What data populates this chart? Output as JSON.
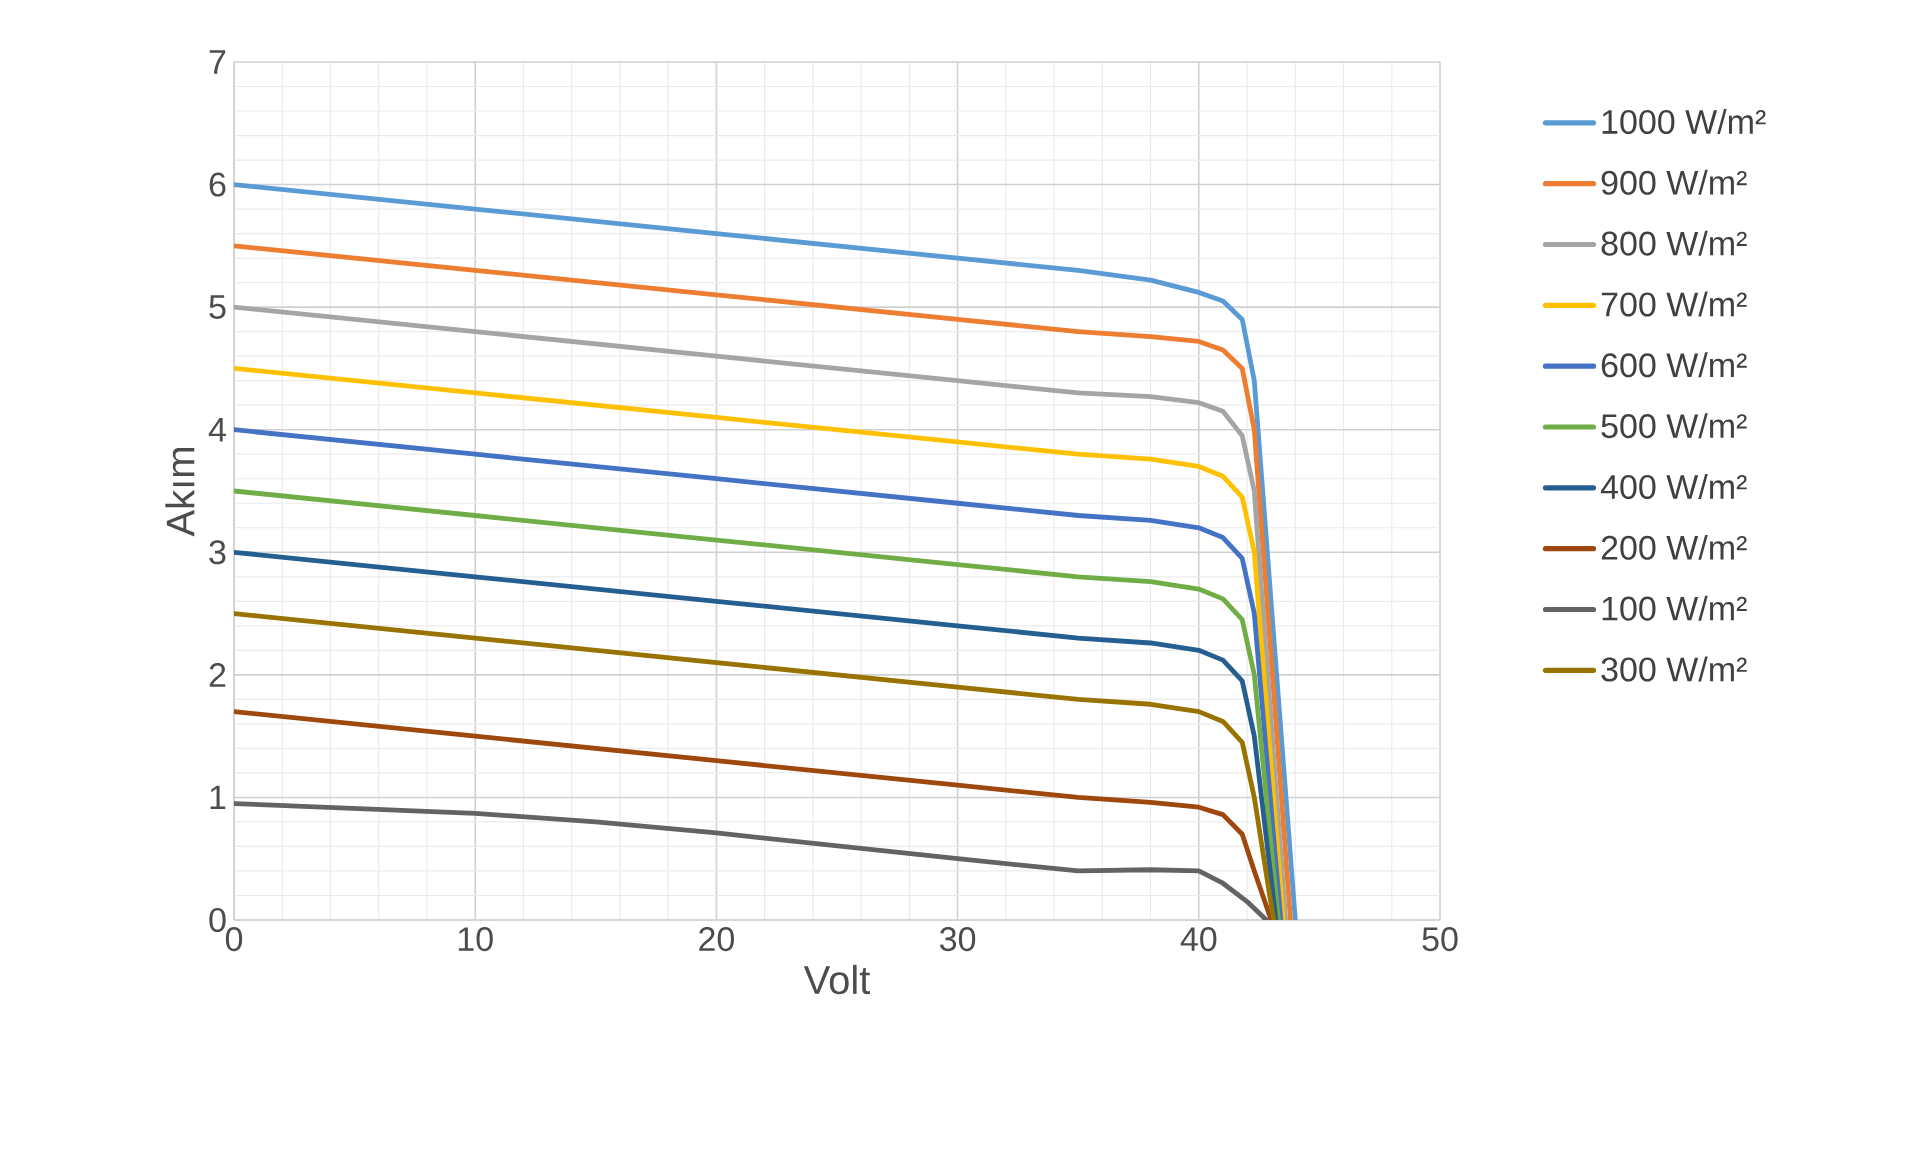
{
  "chart_data": {
    "type": "line",
    "xlabel": "Volt",
    "ylabel": "Akım",
    "xlim": [
      0,
      50
    ],
    "ylim": [
      0,
      7
    ],
    "xticks": [
      0,
      10,
      20,
      30,
      40,
      50
    ],
    "yticks": [
      0,
      1,
      2,
      3,
      4,
      5,
      6,
      7
    ],
    "grid": true,
    "legend": "right",
    "series": [
      {
        "name": "1000 W/m²",
        "color": "#5b9bd5",
        "x": [
          0,
          10,
          20,
          30,
          35,
          38,
          40,
          41,
          41.8,
          42.3,
          44.0
        ],
        "values": [
          6.0,
          5.8,
          5.6,
          5.4,
          5.3,
          5.22,
          5.12,
          5.05,
          4.9,
          4.4,
          0
        ]
      },
      {
        "name": "900 W/m²",
        "color": "#ed7d31",
        "x": [
          0,
          10,
          20,
          30,
          35,
          38,
          40,
          41,
          41.8,
          42.3,
          43.8
        ],
        "values": [
          5.5,
          5.3,
          5.1,
          4.9,
          4.8,
          4.76,
          4.72,
          4.65,
          4.5,
          4.0,
          0
        ]
      },
      {
        "name": "800 W/m²",
        "color": "#a5a5a5",
        "x": [
          0,
          10,
          20,
          30,
          35,
          38,
          40,
          41,
          41.8,
          42.3,
          43.6
        ],
        "values": [
          5.0,
          4.8,
          4.6,
          4.4,
          4.3,
          4.27,
          4.22,
          4.15,
          3.95,
          3.5,
          0
        ]
      },
      {
        "name": "700 W/m²",
        "color": "#ffc000",
        "x": [
          0,
          10,
          20,
          30,
          35,
          38,
          40,
          41,
          41.8,
          42.3,
          43.5
        ],
        "values": [
          4.5,
          4.3,
          4.1,
          3.9,
          3.8,
          3.76,
          3.7,
          3.62,
          3.45,
          3.0,
          0
        ]
      },
      {
        "name": "600 W/m²",
        "color": "#4472c4",
        "x": [
          0,
          10,
          20,
          30,
          35,
          38,
          40,
          41,
          41.8,
          42.3,
          43.4
        ],
        "values": [
          4.0,
          3.8,
          3.6,
          3.4,
          3.3,
          3.26,
          3.2,
          3.12,
          2.95,
          2.5,
          0
        ]
      },
      {
        "name": "500 W/m²",
        "color": "#70ad47",
        "x": [
          0,
          10,
          20,
          30,
          35,
          38,
          40,
          41,
          41.8,
          42.3,
          43.3
        ],
        "values": [
          3.5,
          3.3,
          3.1,
          2.9,
          2.8,
          2.76,
          2.7,
          2.62,
          2.45,
          2.0,
          0
        ]
      },
      {
        "name": "400 W/m²",
        "color": "#255e91",
        "x": [
          0,
          10,
          20,
          30,
          35,
          38,
          40,
          41,
          41.8,
          42.3,
          43.2
        ],
        "values": [
          3.0,
          2.8,
          2.6,
          2.4,
          2.3,
          2.26,
          2.2,
          2.12,
          1.95,
          1.5,
          0
        ]
      },
      {
        "name": "200 W/m²",
        "color": "#9e480e",
        "x": [
          0,
          10,
          20,
          30,
          35,
          38,
          40,
          41,
          41.8,
          42.3,
          43.0
        ],
        "values": [
          1.7,
          1.5,
          1.3,
          1.1,
          1.0,
          0.96,
          0.92,
          0.86,
          0.7,
          0.4,
          0
        ]
      },
      {
        "name": "100 W/m²",
        "color": "#636363",
        "x": [
          0,
          10,
          15,
          20,
          30,
          35,
          38,
          40,
          41,
          42,
          42.8
        ],
        "values": [
          0.95,
          0.87,
          0.8,
          0.71,
          0.5,
          0.4,
          0.41,
          0.4,
          0.3,
          0.15,
          0
        ]
      },
      {
        "name": "300 W/m²",
        "color": "#997300",
        "x": [
          0,
          10,
          20,
          30,
          35,
          38,
          40,
          41,
          41.8,
          42.3,
          43.1
        ],
        "values": [
          2.5,
          2.3,
          2.1,
          1.9,
          1.8,
          1.76,
          1.7,
          1.62,
          1.45,
          1.0,
          0
        ]
      }
    ]
  }
}
